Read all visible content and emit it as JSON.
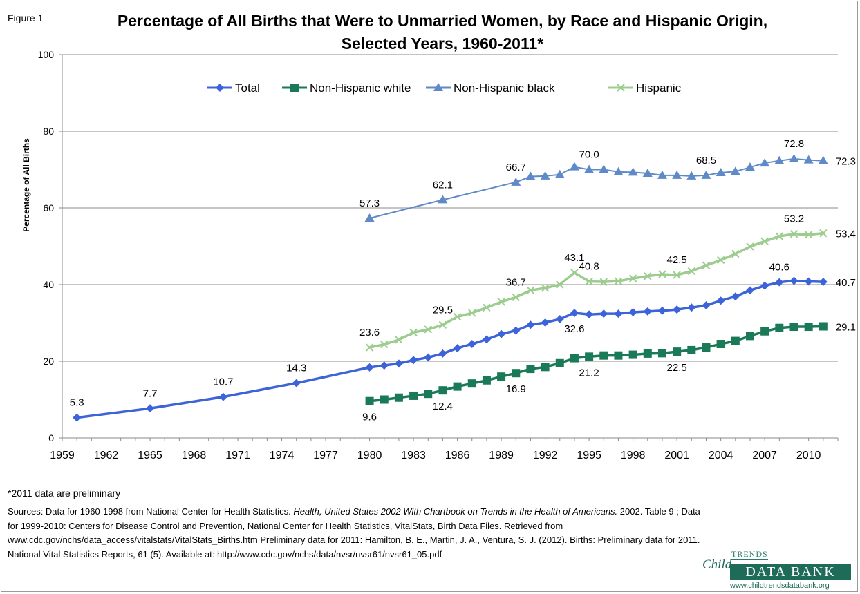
{
  "figure_label": "Figure 1",
  "chart_data": {
    "type": "line",
    "title": "Percentage of All Births that Were to Unmarried Women, by Race and Hispanic Origin, Selected Years, 1960-2011*",
    "xlabel": "",
    "ylabel": "Percentage of All Births",
    "xlim": [
      1959,
      2012
    ],
    "ylim": [
      0,
      100
    ],
    "xticks": [
      1959,
      1962,
      1965,
      1968,
      1971,
      1974,
      1977,
      1980,
      1983,
      1986,
      1989,
      1992,
      1995,
      1998,
      2001,
      2004,
      2007,
      2010
    ],
    "yticks": [
      0,
      20,
      40,
      60,
      80,
      100
    ],
    "grid": "horizontal",
    "legend": "top-center",
    "series": [
      {
        "name": "Total",
        "color": "#3c64d8",
        "marker": "diamond",
        "x": [
          1960,
          1965,
          1970,
          1975,
          1980,
          1981,
          1982,
          1983,
          1984,
          1985,
          1986,
          1987,
          1988,
          1989,
          1990,
          1991,
          1992,
          1993,
          1994,
          1995,
          1996,
          1997,
          1998,
          1999,
          2000,
          2001,
          2002,
          2003,
          2004,
          2005,
          2006,
          2007,
          2008,
          2009,
          2010,
          2011
        ],
        "y": [
          5.3,
          7.7,
          10.7,
          14.3,
          18.4,
          18.9,
          19.4,
          20.3,
          21.0,
          22.0,
          23.4,
          24.5,
          25.7,
          27.1,
          28.0,
          29.5,
          30.1,
          31.0,
          32.6,
          32.2,
          32.4,
          32.4,
          32.8,
          33.0,
          33.2,
          33.5,
          34.0,
          34.6,
          35.8,
          36.9,
          38.5,
          39.7,
          40.6,
          41.0,
          40.8,
          40.7
        ]
      },
      {
        "name": "Non-Hispanic white",
        "color": "#1a7a58",
        "marker": "square",
        "x": [
          1980,
          1981,
          1982,
          1983,
          1984,
          1985,
          1986,
          1987,
          1988,
          1989,
          1990,
          1991,
          1992,
          1993,
          1994,
          1995,
          1996,
          1997,
          1998,
          1999,
          2000,
          2001,
          2002,
          2003,
          2004,
          2005,
          2006,
          2007,
          2008,
          2009,
          2010,
          2011
        ],
        "y": [
          9.6,
          10.0,
          10.5,
          11.0,
          11.5,
          12.4,
          13.4,
          14.2,
          15.0,
          16.0,
          16.9,
          18.0,
          18.5,
          19.5,
          20.8,
          21.2,
          21.5,
          21.5,
          21.7,
          22.0,
          22.1,
          22.5,
          22.9,
          23.6,
          24.5,
          25.3,
          26.6,
          27.8,
          28.7,
          29.0,
          29.0,
          29.1
        ]
      },
      {
        "name": "Non-Hispanic black",
        "color": "#5e8ac8",
        "marker": "triangle",
        "x": [
          1980,
          1985,
          1990,
          1991,
          1992,
          1993,
          1994,
          1995,
          1996,
          1997,
          1998,
          1999,
          2000,
          2001,
          2002,
          2003,
          2004,
          2005,
          2006,
          2007,
          2008,
          2009,
          2010,
          2011
        ],
        "y": [
          57.3,
          62.1,
          66.7,
          68.2,
          68.3,
          68.7,
          70.7,
          70.0,
          70.0,
          69.4,
          69.3,
          69.0,
          68.5,
          68.5,
          68.3,
          68.5,
          69.2,
          69.5,
          70.6,
          71.7,
          72.3,
          72.8,
          72.5,
          72.3
        ]
      },
      {
        "name": "Hispanic",
        "color": "#9ccc8e",
        "marker": "x",
        "x": [
          1980,
          1981,
          1982,
          1983,
          1984,
          1985,
          1986,
          1987,
          1988,
          1989,
          1990,
          1991,
          1992,
          1993,
          1994,
          1995,
          1996,
          1997,
          1998,
          1999,
          2000,
          2001,
          2002,
          2003,
          2004,
          2005,
          2006,
          2007,
          2008,
          2009,
          2010,
          2011
        ],
        "y": [
          23.6,
          24.4,
          25.6,
          27.5,
          28.3,
          29.5,
          31.6,
          32.6,
          34.0,
          35.5,
          36.7,
          38.5,
          39.1,
          40.0,
          43.1,
          40.8,
          40.7,
          40.9,
          41.6,
          42.2,
          42.7,
          42.5,
          43.5,
          45.0,
          46.4,
          48.0,
          49.9,
          51.3,
          52.6,
          53.2,
          53.0,
          53.4
        ]
      }
    ],
    "data_labels": [
      {
        "series": "Total",
        "x": 1960,
        "text": "5.3",
        "pos": "above"
      },
      {
        "series": "Total",
        "x": 1965,
        "text": "7.7",
        "pos": "above"
      },
      {
        "series": "Total",
        "x": 1970,
        "text": "10.7",
        "pos": "above"
      },
      {
        "series": "Total",
        "x": 1975,
        "text": "14.3",
        "pos": "above"
      },
      {
        "series": "Total",
        "x": 1994,
        "text": "32.6",
        "pos": "below"
      },
      {
        "series": "Total",
        "x": 2008,
        "text": "40.6",
        "pos": "above"
      },
      {
        "series": "Total",
        "x": 2011,
        "text": "40.7",
        "pos": "right"
      },
      {
        "series": "Non-Hispanic white",
        "x": 1980,
        "text": "9.6",
        "pos": "below"
      },
      {
        "series": "Non-Hispanic white",
        "x": 1985,
        "text": "12.4",
        "pos": "below"
      },
      {
        "series": "Non-Hispanic white",
        "x": 1990,
        "text": "16.9",
        "pos": "below"
      },
      {
        "series": "Non-Hispanic white",
        "x": 1995,
        "text": "21.2",
        "pos": "below"
      },
      {
        "series": "Non-Hispanic white",
        "x": 2001,
        "text": "22.5",
        "pos": "below"
      },
      {
        "series": "Non-Hispanic white",
        "x": 2011,
        "text": "29.1",
        "pos": "right"
      },
      {
        "series": "Non-Hispanic black",
        "x": 1980,
        "text": "57.3",
        "pos": "above"
      },
      {
        "series": "Non-Hispanic black",
        "x": 1985,
        "text": "62.1",
        "pos": "above"
      },
      {
        "series": "Non-Hispanic black",
        "x": 1990,
        "text": "66.7",
        "pos": "above"
      },
      {
        "series": "Non-Hispanic black",
        "x": 1995,
        "text": "70.0",
        "pos": "above"
      },
      {
        "series": "Non-Hispanic black",
        "x": 2003,
        "text": "68.5",
        "pos": "above"
      },
      {
        "series": "Non-Hispanic black",
        "x": 2009,
        "text": "72.8",
        "pos": "above"
      },
      {
        "series": "Non-Hispanic black",
        "x": 2011,
        "text": "72.3",
        "pos": "right"
      },
      {
        "series": "Hispanic",
        "x": 1980,
        "text": "23.6",
        "pos": "above"
      },
      {
        "series": "Hispanic",
        "x": 1985,
        "text": "29.5",
        "pos": "above"
      },
      {
        "series": "Hispanic",
        "x": 1990,
        "text": "36.7",
        "pos": "above"
      },
      {
        "series": "Hispanic",
        "x": 1994,
        "text": "43.1",
        "pos": "above"
      },
      {
        "series": "Hispanic",
        "x": 1995,
        "text": "40.8",
        "pos": "above"
      },
      {
        "series": "Hispanic",
        "x": 2001,
        "text": "42.5",
        "pos": "above"
      },
      {
        "series": "Hispanic",
        "x": 2009,
        "text": "53.2",
        "pos": "above"
      },
      {
        "series": "Hispanic",
        "x": 2011,
        "text": "53.4",
        "pos": "right"
      }
    ]
  },
  "footnote": "*2011 data are preliminary",
  "sources": {
    "p1": "Sources: Data for 1960-1998 from National Center for Health Statistics. ",
    "p1_italic": "Health, United States 2002 With Chartbook on Trends in the Health of Americans.",
    "p2": " 2002. Table 9 ; Data for 1999-2010: Centers for Disease Control and Prevention, National Center for Health Statistics, VitalStats, Birth Data Files. Retrieved from www.cdc.gov/nchs/data_access/vitalstats/VitalStats_Births.htm Preliminary data for 2011: Hamilton, B. E., Martin, J. A., Ventura, S. J. (2012). Births: Preliminary data for 2011. National Vital Statistics Reports, 61 (5). Available at: http://www.cdc.gov/nchs/data/nvsr/nvsr61/nvsr61_05.pdf"
  },
  "logo": {
    "child": "Child",
    "trends": "TRENDS",
    "bank": "DATA BANK",
    "url": "www.childtrendsdatabank.org"
  }
}
